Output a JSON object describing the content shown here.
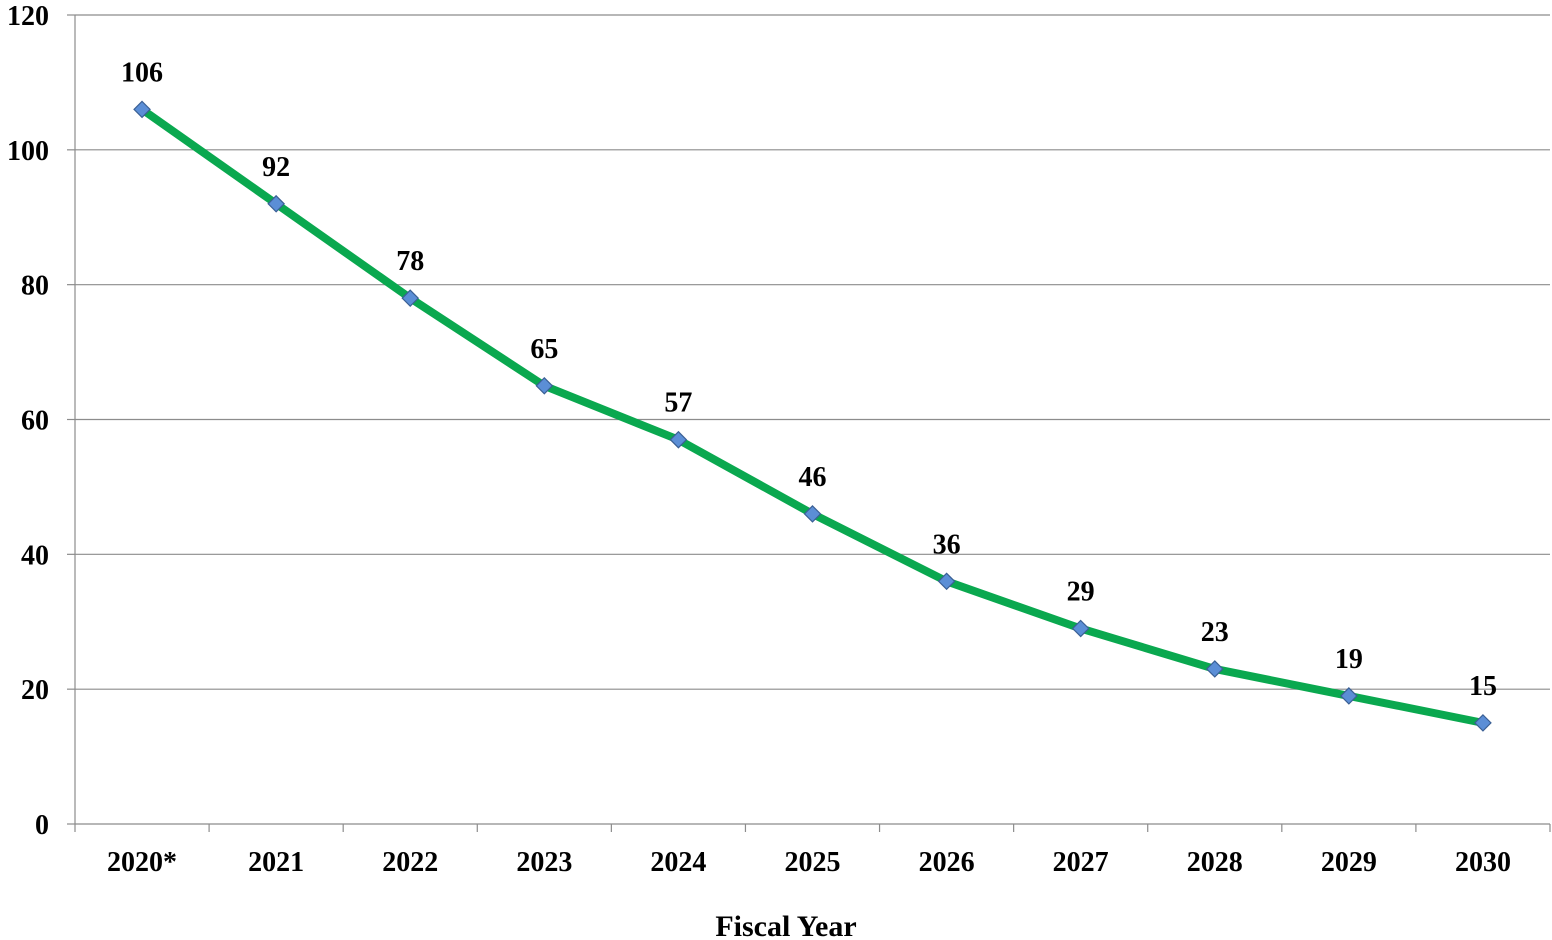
{
  "chart_data": {
    "type": "line",
    "title": "",
    "xlabel": "Fiscal Year",
    "ylabel": "",
    "categories": [
      "2020*",
      "2021",
      "2022",
      "2023",
      "2024",
      "2025",
      "2026",
      "2027",
      "2028",
      "2029",
      "2030"
    ],
    "series": [
      {
        "values": [
          106,
          92,
          78,
          65,
          57,
          46,
          36,
          29,
          23,
          19,
          15
        ],
        "line_color": "#0aa84f",
        "marker_color": "#5b8ed6",
        "marker": "diamond"
      }
    ],
    "ylim": [
      0,
      120
    ],
    "yticks": [
      0,
      20,
      40,
      60,
      80,
      100,
      120
    ],
    "grid": "horizontal",
    "data_labels": true,
    "legend": "none",
    "colors": {
      "gridline": "#8c8c8c",
      "axis": "#8c8c8c",
      "text": "#000000"
    }
  }
}
